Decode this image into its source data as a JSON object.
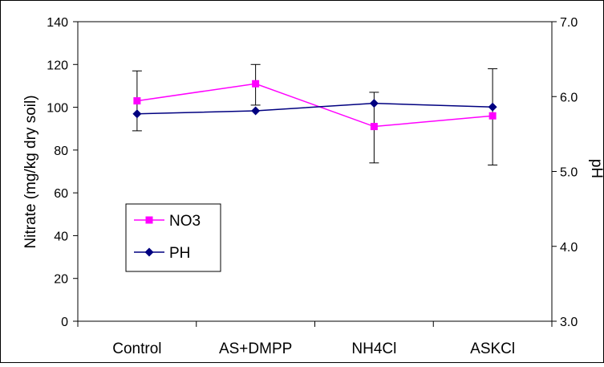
{
  "chart_data": {
    "type": "line",
    "categories": [
      "Control",
      "AS+DMPP",
      "NH4Cl",
      "ASKCl"
    ],
    "ylabel": "Nitrate (mg/kg dry soil)",
    "y2label": "pH",
    "ylim": [
      0,
      140
    ],
    "y2lim": [
      3.0,
      7.0
    ],
    "yticks": [
      "0",
      "20",
      "40",
      "60",
      "80",
      "100",
      "120",
      "140"
    ],
    "y2ticks": [
      "3.0",
      "4.0",
      "5.0",
      "6.0",
      "7.0"
    ],
    "grid": false,
    "legend_position": "left-lower",
    "series": [
      {
        "name": "NO3",
        "axis": "left",
        "marker": "square",
        "color": "#ff00ff",
        "values": [
          103,
          111,
          91,
          96
        ],
        "error_low": [
          89,
          101,
          74,
          73
        ],
        "error_high": [
          117,
          120,
          107,
          118
        ]
      },
      {
        "name": "PH",
        "axis": "right",
        "marker": "diamond",
        "color": "#000080",
        "values": [
          5.77,
          5.81,
          5.91,
          5.86
        ]
      }
    ]
  }
}
